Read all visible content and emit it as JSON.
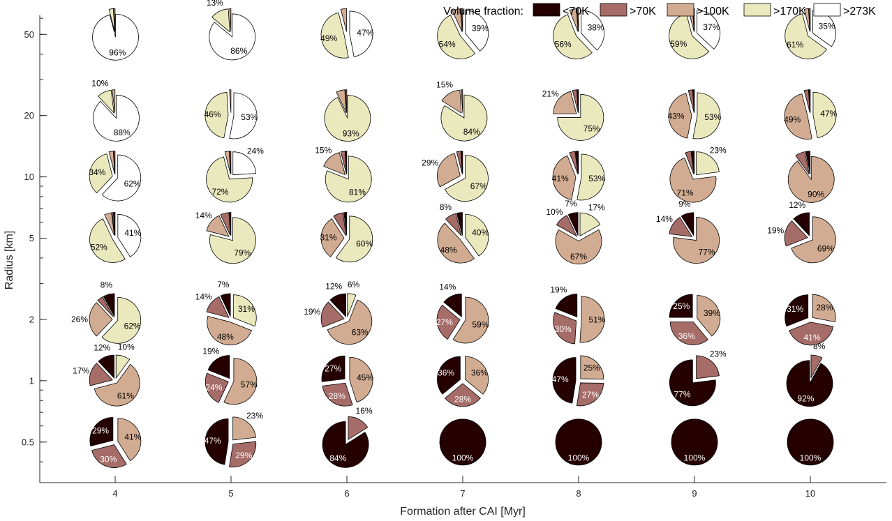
{
  "chart_data": {
    "type": "pie",
    "xlabel": "Formation after CAI [Myr]",
    "ylabel": "Radius [km]",
    "x_categories": [
      "4",
      "5",
      "6",
      "7",
      "8",
      "9",
      "10"
    ],
    "y_categories": [
      "0.5",
      "1",
      "2",
      "5",
      "10",
      "20",
      "50"
    ],
    "y_scale": "log",
    "legend": {
      "title": "Volume fraction:",
      "placement": "top-right",
      "entries": [
        {
          "name": "<70K",
          "color": "#240000"
        },
        {
          "name": ">70K",
          "color": "#a56c68"
        },
        {
          "name": ">100K",
          "color": "#d2ac92"
        },
        {
          "name": ">170K",
          "color": "#eae9bd"
        },
        {
          "name": ">273K",
          "color": "#ffffff"
        }
      ]
    },
    "slice_order": [
      "<70K",
      ">70K",
      ">100K",
      ">170K",
      ">273K"
    ],
    "pies": [
      {
        "formation": "4",
        "radius": "0.5",
        "fractions": [
          29,
          30,
          41,
          0,
          0
        ],
        "labels": [
          "29%",
          "30%",
          "41%",
          "",
          ""
        ]
      },
      {
        "formation": "5",
        "radius": "0.5",
        "fractions": [
          47,
          29,
          23,
          0,
          0
        ],
        "labels": [
          "47%",
          "29%",
          "23%",
          "",
          ""
        ]
      },
      {
        "formation": "6",
        "radius": "0.5",
        "fractions": [
          84,
          16,
          0,
          0,
          0
        ],
        "labels": [
          "84%",
          "16%",
          "",
          "",
          ""
        ]
      },
      {
        "formation": "7",
        "radius": "0.5",
        "fractions": [
          100,
          0,
          0,
          0,
          0
        ],
        "labels": [
          "100%",
          "",
          "",
          "",
          ""
        ]
      },
      {
        "formation": "8",
        "radius": "0.5",
        "fractions": [
          100,
          0,
          0,
          0,
          0
        ],
        "labels": [
          "100%",
          "",
          "",
          "",
          ""
        ]
      },
      {
        "formation": "9",
        "radius": "0.5",
        "fractions": [
          100,
          0,
          0,
          0,
          0
        ],
        "labels": [
          "100%",
          "",
          "",
          "",
          ""
        ]
      },
      {
        "formation": "10",
        "radius": "0.5",
        "fractions": [
          100,
          0,
          0,
          0,
          0
        ],
        "labels": [
          "100%",
          "",
          "",
          "",
          ""
        ]
      },
      {
        "formation": "4",
        "radius": "1",
        "fractions": [
          12,
          17,
          61,
          10,
          0
        ],
        "labels": [
          "12%",
          "17%",
          "61%",
          "10%",
          ""
        ]
      },
      {
        "formation": "5",
        "radius": "1",
        "fractions": [
          19,
          24,
          57,
          0,
          0
        ],
        "labels": [
          "19%",
          "24%",
          "57%",
          "",
          ""
        ]
      },
      {
        "formation": "6",
        "radius": "1",
        "fractions": [
          27,
          28,
          45,
          0,
          0
        ],
        "labels": [
          "27%",
          "28%",
          "45%",
          "",
          ""
        ]
      },
      {
        "formation": "7",
        "radius": "1",
        "fractions": [
          36,
          28,
          36,
          0,
          0
        ],
        "labels": [
          "36%",
          "28%",
          "36%",
          "",
          ""
        ]
      },
      {
        "formation": "8",
        "radius": "1",
        "fractions": [
          47,
          27,
          25,
          0,
          0
        ],
        "labels": [
          "47%",
          "27%",
          "25%",
          "",
          ""
        ]
      },
      {
        "formation": "9",
        "radius": "1",
        "fractions": [
          77,
          23,
          0,
          0,
          0
        ],
        "labels": [
          "77%",
          "23%",
          "",
          "",
          ""
        ]
      },
      {
        "formation": "10",
        "radius": "1",
        "fractions": [
          92,
          8,
          0,
          0,
          0
        ],
        "labels": [
          "92%",
          "8%",
          "",
          "",
          ""
        ]
      },
      {
        "formation": "4",
        "radius": "2",
        "fractions": [
          8,
          4,
          26,
          62,
          0
        ],
        "labels": [
          "8%",
          "",
          "26%",
          "62%",
          ""
        ]
      },
      {
        "formation": "5",
        "radius": "2",
        "fractions": [
          7,
          14,
          48,
          31,
          0
        ],
        "labels": [
          "7%",
          "14%",
          "48%",
          "31%",
          ""
        ]
      },
      {
        "formation": "6",
        "radius": "2",
        "fractions": [
          12,
          19,
          63,
          6,
          0
        ],
        "labels": [
          "12%",
          "19%",
          "63%",
          "6%",
          ""
        ]
      },
      {
        "formation": "7",
        "radius": "2",
        "fractions": [
          14,
          27,
          59,
          0,
          0
        ],
        "labels": [
          "14%",
          "27%",
          "59%",
          "",
          ""
        ]
      },
      {
        "formation": "8",
        "radius": "2",
        "fractions": [
          19,
          30,
          51,
          0,
          0
        ],
        "labels": [
          "19%",
          "30%",
          "51%",
          "",
          ""
        ]
      },
      {
        "formation": "9",
        "radius": "2",
        "fractions": [
          25,
          36,
          39,
          0,
          0
        ],
        "labels": [
          "25%",
          "36%",
          "39%",
          "",
          ""
        ]
      },
      {
        "formation": "10",
        "radius": "2",
        "fractions": [
          31,
          41,
          28,
          0,
          0
        ],
        "labels": [
          "31%",
          "41%",
          "28%",
          "",
          ""
        ]
      },
      {
        "formation": "4",
        "radius": "5",
        "fractions": [
          1,
          1,
          5,
          52,
          41
        ],
        "labels": [
          "",
          "",
          "",
          "52%",
          "41%"
        ]
      },
      {
        "formation": "5",
        "radius": "5",
        "fractions": [
          1,
          6,
          14,
          79,
          0
        ],
        "labels": [
          "",
          "",
          "14%",
          "79%",
          ""
        ]
      },
      {
        "formation": "6",
        "radius": "5",
        "fractions": [
          2,
          7,
          31,
          60,
          0
        ],
        "labels": [
          "",
          "",
          "31%",
          "60%",
          ""
        ]
      },
      {
        "formation": "7",
        "radius": "5",
        "fractions": [
          4,
          8,
          48,
          40,
          0
        ],
        "labels": [
          "",
          "8%",
          "48%",
          "40%",
          ""
        ]
      },
      {
        "formation": "8",
        "radius": "5",
        "fractions": [
          7,
          10,
          67,
          17,
          0
        ],
        "labels": [
          "7%",
          "10%",
          "67%",
          "17%",
          ""
        ]
      },
      {
        "formation": "9",
        "radius": "5",
        "fractions": [
          9,
          14,
          77,
          0,
          0
        ],
        "labels": [
          "9%",
          "14%",
          "77%",
          "",
          ""
        ]
      },
      {
        "formation": "10",
        "radius": "5",
        "fractions": [
          12,
          19,
          69,
          0,
          0
        ],
        "labels": [
          "12%",
          "19%",
          "69%",
          "",
          ""
        ]
      },
      {
        "formation": "4",
        "radius": "10",
        "fractions": [
          0,
          1,
          3,
          34,
          62
        ],
        "labels": [
          "",
          "",
          "",
          "34%",
          "62%"
        ]
      },
      {
        "formation": "5",
        "radius": "10",
        "fractions": [
          0,
          1,
          3,
          72,
          24
        ],
        "labels": [
          "",
          "",
          "",
          "72%",
          "24%"
        ]
      },
      {
        "formation": "6",
        "radius": "10",
        "fractions": [
          1,
          3,
          15,
          81,
          0
        ],
        "labels": [
          "",
          "",
          "15%",
          "81%",
          ""
        ]
      },
      {
        "formation": "7",
        "radius": "10",
        "fractions": [
          1,
          3,
          29,
          67,
          0
        ],
        "labels": [
          "",
          "",
          "29%",
          "67%",
          ""
        ]
      },
      {
        "formation": "8",
        "radius": "10",
        "fractions": [
          2,
          4,
          41,
          53,
          0
        ],
        "labels": [
          "",
          "",
          "41%",
          "53%",
          ""
        ]
      },
      {
        "formation": "9",
        "radius": "10",
        "fractions": [
          2,
          4,
          71,
          23,
          0
        ],
        "labels": [
          "",
          "",
          "71%",
          "23%",
          ""
        ]
      },
      {
        "formation": "10",
        "radius": "10",
        "fractions": [
          3,
          7,
          90,
          0,
          0
        ],
        "labels": [
          "",
          "",
          "90%",
          "",
          ""
        ]
      },
      {
        "formation": "4",
        "radius": "20",
        "fractions": [
          0,
          0,
          2,
          10,
          88
        ],
        "labels": [
          "",
          "",
          "",
          "10%",
          "88%"
        ]
      },
      {
        "formation": "5",
        "radius": "20",
        "fractions": [
          0,
          0,
          1,
          46,
          53
        ],
        "labels": [
          "",
          "",
          "",
          "46%",
          "53%"
        ]
      },
      {
        "formation": "6",
        "radius": "20",
        "fractions": [
          0,
          1,
          6,
          93,
          0
        ],
        "labels": [
          "",
          "",
          "",
          "93%",
          ""
        ]
      },
      {
        "formation": "7",
        "radius": "20",
        "fractions": [
          0,
          1,
          15,
          84,
          0
        ],
        "labels": [
          "",
          "",
          "15%",
          "84%",
          ""
        ]
      },
      {
        "formation": "8",
        "radius": "20",
        "fractions": [
          1,
          3,
          21,
          75,
          0
        ],
        "labels": [
          "",
          "",
          "21%",
          "75%",
          ""
        ]
      },
      {
        "formation": "9",
        "radius": "20",
        "fractions": [
          1,
          3,
          43,
          53,
          0
        ],
        "labels": [
          "",
          "",
          "43%",
          "53%",
          ""
        ]
      },
      {
        "formation": "10",
        "radius": "20",
        "fractions": [
          1,
          3,
          49,
          47,
          0
        ],
        "labels": [
          "",
          "",
          "49%",
          "47%",
          ""
        ]
      },
      {
        "formation": "4",
        "radius": "50",
        "fractions": [
          0,
          0,
          1,
          3,
          96
        ],
        "labels": [
          "",
          "",
          "",
          "",
          "96%"
        ]
      },
      {
        "formation": "5",
        "radius": "50",
        "fractions": [
          0,
          0,
          1,
          13,
          86
        ],
        "labels": [
          "",
          "",
          "",
          "13%",
          "86%"
        ]
      },
      {
        "formation": "6",
        "radius": "50",
        "fractions": [
          0,
          0,
          4,
          49,
          47
        ],
        "labels": [
          "",
          "",
          "",
          "49%",
          "47%"
        ]
      },
      {
        "formation": "7",
        "radius": "50",
        "fractions": [
          0,
          1,
          6,
          54,
          39
        ],
        "labels": [
          "",
          "",
          "",
          "54%",
          "39%"
        ]
      },
      {
        "formation": "8",
        "radius": "50",
        "fractions": [
          0,
          1,
          5,
          56,
          38
        ],
        "labels": [
          "",
          "",
          "",
          "56%",
          "38%"
        ]
      },
      {
        "formation": "9",
        "radius": "50",
        "fractions": [
          0,
          1,
          3,
          59,
          37
        ],
        "labels": [
          "",
          "",
          "",
          "59%",
          "37%"
        ]
      },
      {
        "formation": "10",
        "radius": "50",
        "fractions": [
          0,
          1,
          3,
          61,
          35
        ],
        "labels": [
          "",
          "",
          "",
          "61%",
          "35%"
        ]
      }
    ]
  }
}
